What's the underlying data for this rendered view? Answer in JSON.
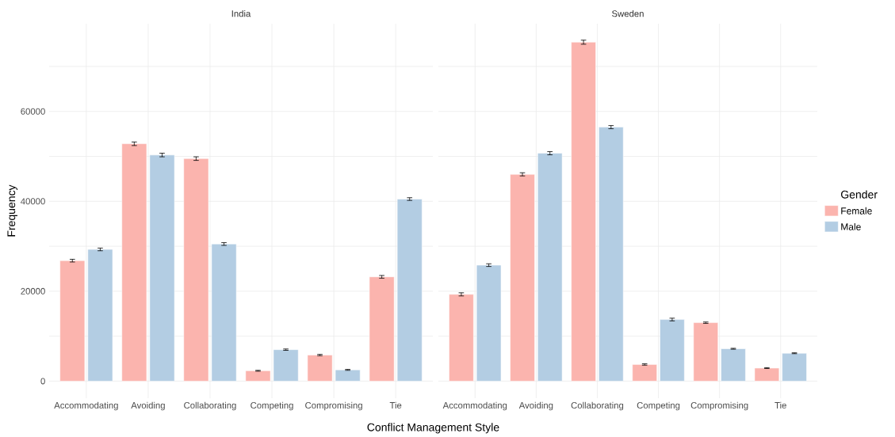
{
  "chart_data": [
    {
      "type": "bar",
      "title": "India",
      "xlabel": "Conflict Management Style",
      "ylabel": "Frequency",
      "categories": [
        "Accommodating",
        "Avoiding",
        "Collaborating",
        "Competing",
        "Compromising",
        "Tie"
      ],
      "series": [
        {
          "color": "#fbb4ae",
          "values": [
            26800,
            52800,
            49500,
            2300,
            5800,
            23200
          ],
          "errors": [
            300,
            400,
            400,
            100,
            150,
            300
          ]
        },
        {
          "color": "#b3cde3",
          "values": [
            29300,
            50300,
            30500,
            7000,
            2500,
            40500
          ],
          "errors": [
            300,
            400,
            300,
            150,
            100,
            300
          ]
        }
      ],
      "ylim": [
        -3800,
        79500
      ],
      "yticks": [
        0,
        {
          "value": 10000,
          "label": null
        },
        20000,
        {
          "value": 30000,
          "label": null
        },
        40000,
        {
          "value": 50000,
          "label": null
        },
        60000,
        {
          "value": 70000,
          "label": null
        }
      ],
      "grid": true,
      "legend": false
    },
    {
      "type": "bar",
      "title": "Sweden",
      "categories": [
        "Accommodating",
        "Avoiding",
        "Collaborating",
        "Competing",
        "Compromising",
        "Tie"
      ],
      "series": [
        {
          "name": "Female",
          "color": "#fbb4ae",
          "values": [
            19300,
            46000,
            75400,
            3700,
            13000,
            2900
          ],
          "errors": [
            350,
            350,
            450,
            150,
            150,
            100
          ]
        },
        {
          "name": "Male",
          "color": "#b3cde3",
          "values": [
            25800,
            50700,
            56500,
            13700,
            7200,
            6200
          ],
          "errors": [
            300,
            350,
            350,
            300,
            100,
            100
          ]
        }
      ],
      "ylim": [
        -3800,
        79500
      ],
      "yticks": [
        0,
        {
          "value": 10000,
          "label": null
        },
        20000,
        {
          "value": 30000,
          "label": null
        },
        40000,
        {
          "value": 50000,
          "label": null
        },
        60000,
        {
          "value": 70000,
          "label": null
        }
      ],
      "grid": true,
      "legend": "right",
      "legend_title": "Gender",
      "tick_labels": "x"
    }
  ]
}
